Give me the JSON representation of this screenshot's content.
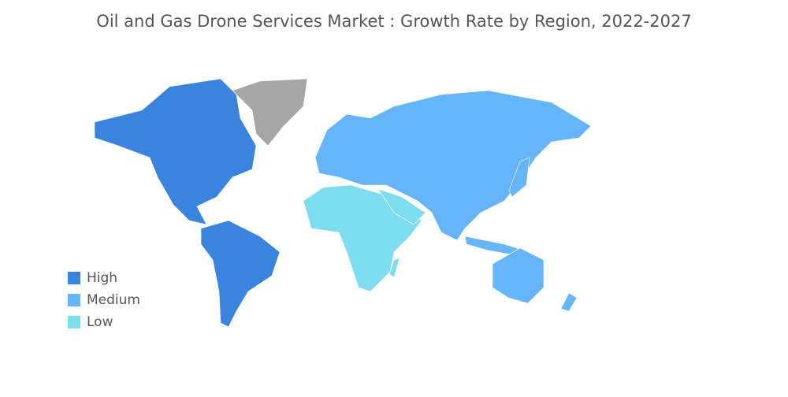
{
  "title": "Oil and Gas Drone Services Market : Growth Rate by Region, 2022-2027",
  "legend": [
    {
      "label": "High",
      "color": "#3a84e0"
    },
    {
      "label": "Medium",
      "color": "#66b5fa"
    },
    {
      "label": "Low",
      "color": "#7dddee"
    }
  ],
  "no_data_color": "#a6a6a6"
}
